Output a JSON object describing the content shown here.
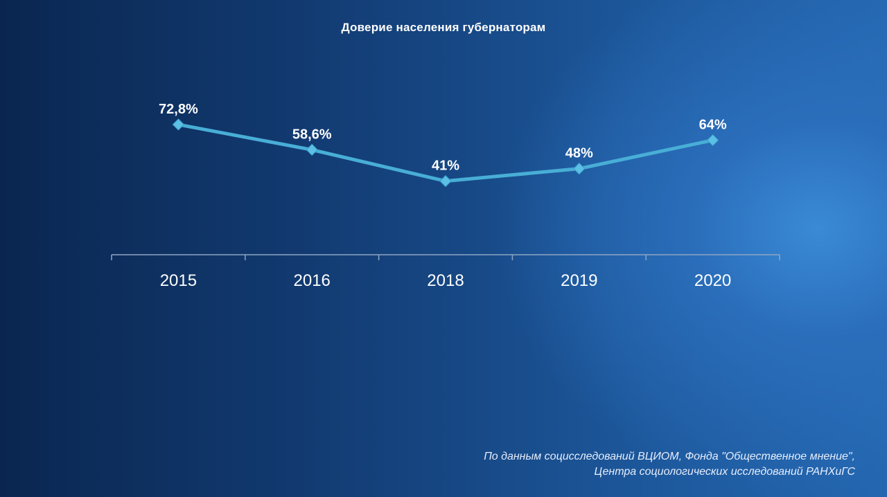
{
  "chart_data": {
    "type": "line",
    "title": "Доверие населения губернаторам",
    "categories": [
      "2015",
      "2016",
      "2018",
      "2019",
      "2020"
    ],
    "series": [
      {
        "values": [
          72.8,
          58.6,
          41,
          48,
          64
        ],
        "labels": [
          "72,8%",
          "58,6%",
          "41%",
          "48%",
          "64%"
        ]
      }
    ],
    "marker": "diamond",
    "ylim": [
      0,
      100
    ],
    "grid": false,
    "legend": "none",
    "colors": {
      "line": "#48aed6",
      "marker": "#5cbfe4",
      "axis": "#8ea6c4",
      "text": "#ffffff"
    }
  },
  "footer": {
    "source_line1": "По данным социсследований ВЦИОМ, Фонда \"Общественное мнение\",",
    "source_line2": "Центра социологических исследований РАНХиГС"
  }
}
